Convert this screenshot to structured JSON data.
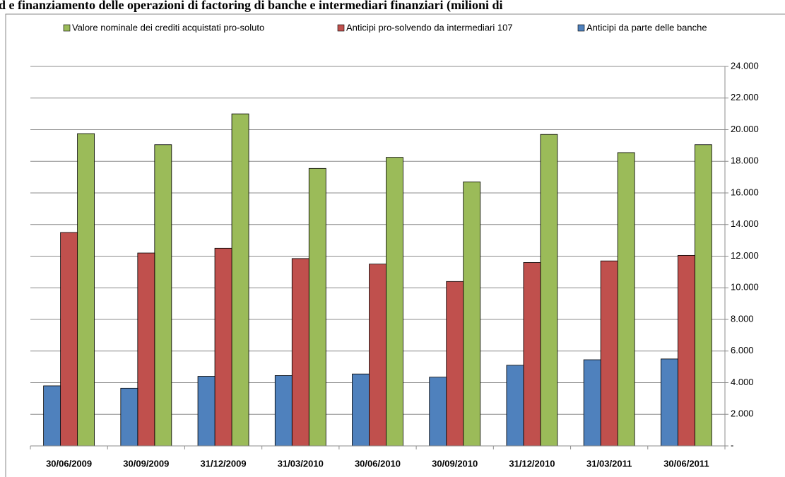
{
  "chart_data": {
    "type": "bar",
    "title": "d e finanziamento delle operazioni di factoring di banche e intermediari finanziari (milioni di",
    "categories": [
      "30/06/2009",
      "30/09/2009",
      "31/12/2009",
      "31/03/2010",
      "30/06/2010",
      "30/09/2010",
      "31/12/2010",
      "31/03/2011",
      "30/06/2011"
    ],
    "series": [
      {
        "name": "Valore nominale dei crediti acquistati  pro-soluto",
        "color": "#9bbb59",
        "values": [
          19750,
          19050,
          21000,
          17550,
          18250,
          16700,
          19700,
          18550,
          19050
        ]
      },
      {
        "name": "Anticipi pro-solvendo da intermediari 107",
        "color": "#c0504d",
        "values": [
          13500,
          12200,
          12500,
          11850,
          11500,
          10400,
          11600,
          11700,
          12050
        ]
      },
      {
        "name": "Anticipi da parte delle banche",
        "color": "#4f81bd",
        "values": [
          3800,
          3650,
          4400,
          4450,
          4550,
          4350,
          5100,
          5450,
          5500
        ]
      }
    ],
    "ylim": [
      0,
      24000
    ],
    "yticks": [
      {
        "value": 0,
        "label": "-"
      },
      {
        "value": 2000,
        "label": "2.000"
      },
      {
        "value": 4000,
        "label": "4.000"
      },
      {
        "value": 6000,
        "label": "6.000"
      },
      {
        "value": 8000,
        "label": "8.000"
      },
      {
        "value": 10000,
        "label": "10.000"
      },
      {
        "value": 12000,
        "label": "12.000"
      },
      {
        "value": 14000,
        "label": "14.000"
      },
      {
        "value": 16000,
        "label": "16.000"
      },
      {
        "value": 18000,
        "label": "18.000"
      },
      {
        "value": 20000,
        "label": "20.000"
      },
      {
        "value": 22000,
        "label": "22.000"
      },
      {
        "value": 24000,
        "label": "24.000"
      }
    ],
    "y_axis_side": "right",
    "grid": true,
    "legend": "top"
  }
}
